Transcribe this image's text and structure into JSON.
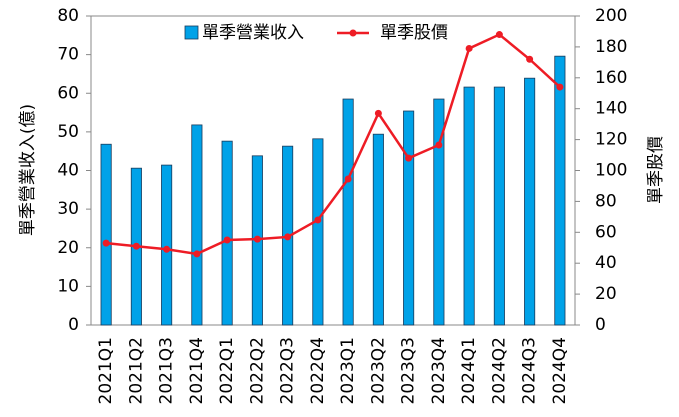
{
  "chart_data": {
    "type": "bar",
    "categories": [
      "2021Q1",
      "2021Q2",
      "2021Q3",
      "2021Q4",
      "2022Q1",
      "2022Q2",
      "2022Q3",
      "2022Q4",
      "2023Q1",
      "2023Q2",
      "2023Q3",
      "2023Q4",
      "2024Q1",
      "2024Q2",
      "2024Q3",
      "2024Q4"
    ],
    "y_label": "單季營業收入(億)",
    "y2_label": "單季股價",
    "series": [
      {
        "name": "單季營業收入",
        "type": "bar",
        "color": "#00a2e8",
        "values": [
          46.8,
          40.6,
          41.4,
          51.8,
          47.6,
          43.8,
          46.3,
          48.2,
          58.5,
          49.4,
          55.4,
          58.5,
          61.6,
          61.6,
          63.9,
          69.6
        ]
      },
      {
        "name": "單季股價",
        "type": "line",
        "axis": "y2",
        "color": "#ee1c25",
        "values": [
          53,
          51,
          49,
          46,
          55,
          55.6,
          57,
          68,
          94.5,
          137,
          108,
          116.5,
          179,
          188,
          172,
          154
        ]
      }
    ],
    "ylim": [
      0,
      80
    ],
    "yticks": [
      0,
      10,
      20,
      30,
      40,
      50,
      60,
      70,
      80
    ],
    "y2lim": [
      0,
      200
    ],
    "y2ticks": [
      0,
      20,
      40,
      60,
      80,
      100,
      120,
      140,
      160,
      180,
      200
    ],
    "legend": "top"
  }
}
